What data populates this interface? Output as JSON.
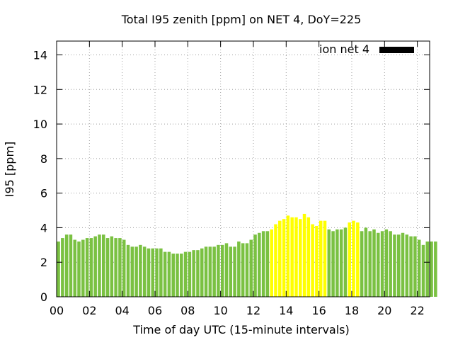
{
  "chart_data": {
    "type": "bar",
    "title": "Total I95 zenith [ppm] on NET 4, DoY=225",
    "xlabel": "Time of day UTC (15-minute intervals)",
    "ylabel": "I95 [ppm]",
    "xlim": [
      0,
      22.75
    ],
    "ylim": [
      0,
      14.8
    ],
    "x_ticks": [
      "00",
      "02",
      "04",
      "06",
      "08",
      "10",
      "12",
      "14",
      "16",
      "18",
      "20",
      "22"
    ],
    "y_ticks": [
      "0",
      "2",
      "4",
      "6",
      "8",
      "10",
      "12",
      "14"
    ],
    "grid": true,
    "legend": {
      "position": "top-right",
      "entries": [
        {
          "label": "ion net 4",
          "color": "#000000"
        }
      ]
    },
    "interval_hours": 0.25,
    "colors": {
      "normal": "#7ac142",
      "highlight": "#ffff00"
    },
    "values": [
      3.2,
      3.4,
      3.6,
      3.6,
      3.3,
      3.2,
      3.3,
      3.4,
      3.4,
      3.5,
      3.6,
      3.6,
      3.4,
      3.5,
      3.4,
      3.4,
      3.3,
      3.0,
      2.9,
      2.9,
      3.0,
      2.9,
      2.8,
      2.8,
      2.8,
      2.8,
      2.6,
      2.6,
      2.5,
      2.5,
      2.5,
      2.6,
      2.6,
      2.7,
      2.7,
      2.8,
      2.9,
      2.9,
      2.9,
      3.0,
      3.0,
      3.1,
      2.9,
      2.9,
      3.2,
      3.1,
      3.1,
      3.3,
      3.6,
      3.7,
      3.8,
      3.8,
      3.9,
      4.2,
      4.4,
      4.5,
      4.7,
      4.6,
      4.6,
      4.5,
      4.8,
      4.6,
      4.2,
      4.1,
      4.4,
      4.4,
      3.9,
      3.8,
      3.9,
      3.9,
      4.0,
      4.3,
      4.4,
      4.3,
      3.8,
      4.0,
      3.8,
      3.9,
      3.7,
      3.8,
      3.9,
      3.8,
      3.6,
      3.6,
      3.7,
      3.6,
      3.5,
      3.5,
      3.3,
      3.0,
      3.2,
      3.2,
      3.2
    ],
    "highlight": [
      0,
      0,
      0,
      0,
      0,
      0,
      0,
      0,
      0,
      0,
      0,
      0,
      0,
      0,
      0,
      0,
      0,
      0,
      0,
      0,
      0,
      0,
      0,
      0,
      0,
      0,
      0,
      0,
      0,
      0,
      0,
      0,
      0,
      0,
      0,
      0,
      0,
      0,
      0,
      0,
      0,
      0,
      0,
      0,
      0,
      0,
      0,
      0,
      0,
      0,
      0,
      0,
      1,
      1,
      1,
      1,
      1,
      1,
      1,
      1,
      1,
      1,
      1,
      1,
      1,
      1,
      0,
      0,
      0,
      0,
      0,
      1,
      1,
      1,
      0,
      0,
      0,
      0,
      0,
      0,
      0,
      0,
      0,
      0,
      0,
      0,
      0,
      0,
      0,
      0,
      0,
      0,
      0
    ]
  }
}
